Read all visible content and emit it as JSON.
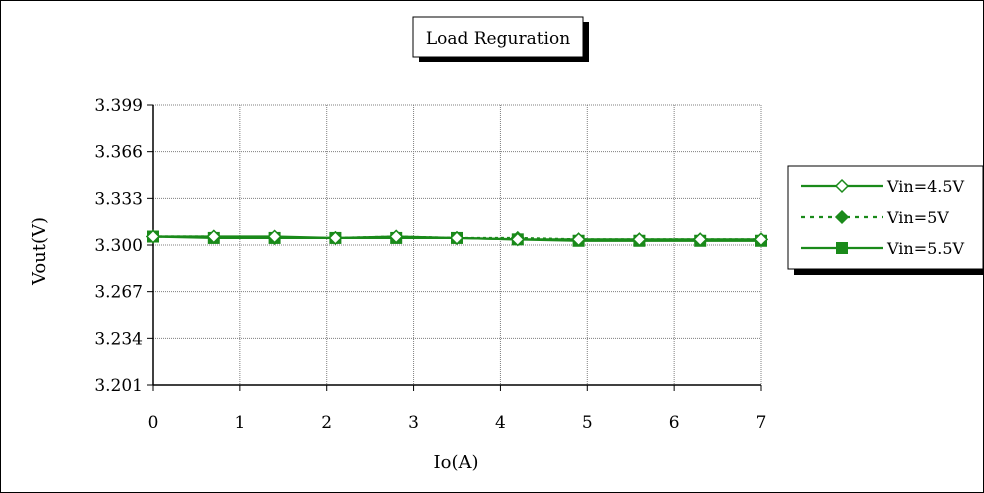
{
  "chart_data": {
    "type": "line",
    "title": "Load Reguration",
    "xlabel": "Io(A)",
    "ylabel": "Vout(V)",
    "xlim": [
      0,
      7
    ],
    "ylim": [
      3.201,
      3.399
    ],
    "xticks": [
      "0",
      "1",
      "2",
      "3",
      "4",
      "5",
      "6",
      "7"
    ],
    "yticks": [
      "3.399",
      "3.366",
      "3.333",
      "3.300",
      "3.267",
      "3.234",
      "3.201"
    ],
    "grid": true,
    "legend_position": "right",
    "series": [
      {
        "name": "Vin=4.5V",
        "color": "#1a8a1a",
        "marker": "diamond-open",
        "line_style": "solid",
        "x": [
          0,
          0.7,
          1.4,
          2.1,
          2.8,
          3.5,
          4.2,
          4.9,
          5.6,
          6.3,
          7.0
        ],
        "y": [
          3.306,
          3.306,
          3.306,
          3.305,
          3.306,
          3.305,
          3.304,
          3.304,
          3.304,
          3.304,
          3.304
        ]
      },
      {
        "name": "Vin=5V",
        "color": "#1a8a1a",
        "marker": "diamond-filled",
        "line_style": "dotted",
        "x": [
          0,
          0.7,
          1.4,
          2.1,
          2.8,
          3.5,
          4.2,
          4.9,
          5.6,
          6.3,
          7.0
        ],
        "y": [
          3.306,
          3.306,
          3.305,
          3.305,
          3.306,
          3.305,
          3.305,
          3.304,
          3.304,
          3.304,
          3.304
        ]
      },
      {
        "name": "Vin=5.5V",
        "color": "#1a8a1a",
        "marker": "square-filled",
        "line_style": "solid",
        "x": [
          0,
          0.7,
          1.4,
          2.1,
          2.8,
          3.5,
          4.2,
          4.9,
          5.6,
          6.3,
          7.0
        ],
        "y": [
          3.306,
          3.305,
          3.305,
          3.305,
          3.305,
          3.305,
          3.304,
          3.303,
          3.303,
          3.303,
          3.303
        ]
      }
    ]
  }
}
